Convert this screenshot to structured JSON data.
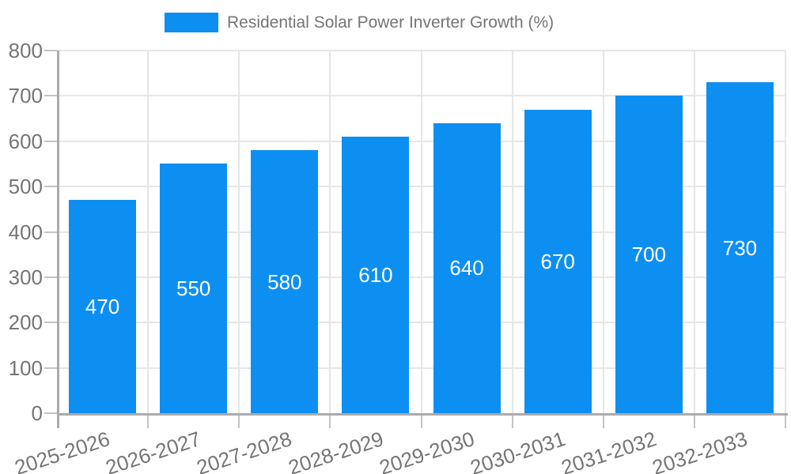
{
  "chart_data": {
    "type": "bar",
    "title": "Residential Solar Power Inverter Growth (%)",
    "categories": [
      "2025-2026",
      "2026-2027",
      "2027-2028",
      "2028-2029",
      "2029-2030",
      "2030-2031",
      "2031-2032",
      "2032-2033"
    ],
    "series": [
      {
        "name": "Residential Solar Power Inverter Growth (%)",
        "values": [
          470,
          550,
          580,
          610,
          640,
          670,
          700,
          730
        ]
      }
    ],
    "value_labels": [
      "470",
      "550",
      "580",
      "610",
      "640",
      "670",
      "700",
      "730"
    ],
    "xlabel": "",
    "ylabel": "",
    "ylim": [
      0,
      800
    ],
    "ytick_step": 100,
    "ytick_labels": [
      "0",
      "100",
      "200",
      "300",
      "400",
      "500",
      "600",
      "700",
      "800"
    ],
    "grid": true,
    "legend_position": "top"
  },
  "colors": {
    "bar": "#0d8ff2",
    "axis_text": "#757575",
    "grid_line": "#e6e6e6",
    "axis_line": "#ababab",
    "tick": "#c4c4c4",
    "value_label": "#ffffff",
    "background": "#ffffff"
  }
}
